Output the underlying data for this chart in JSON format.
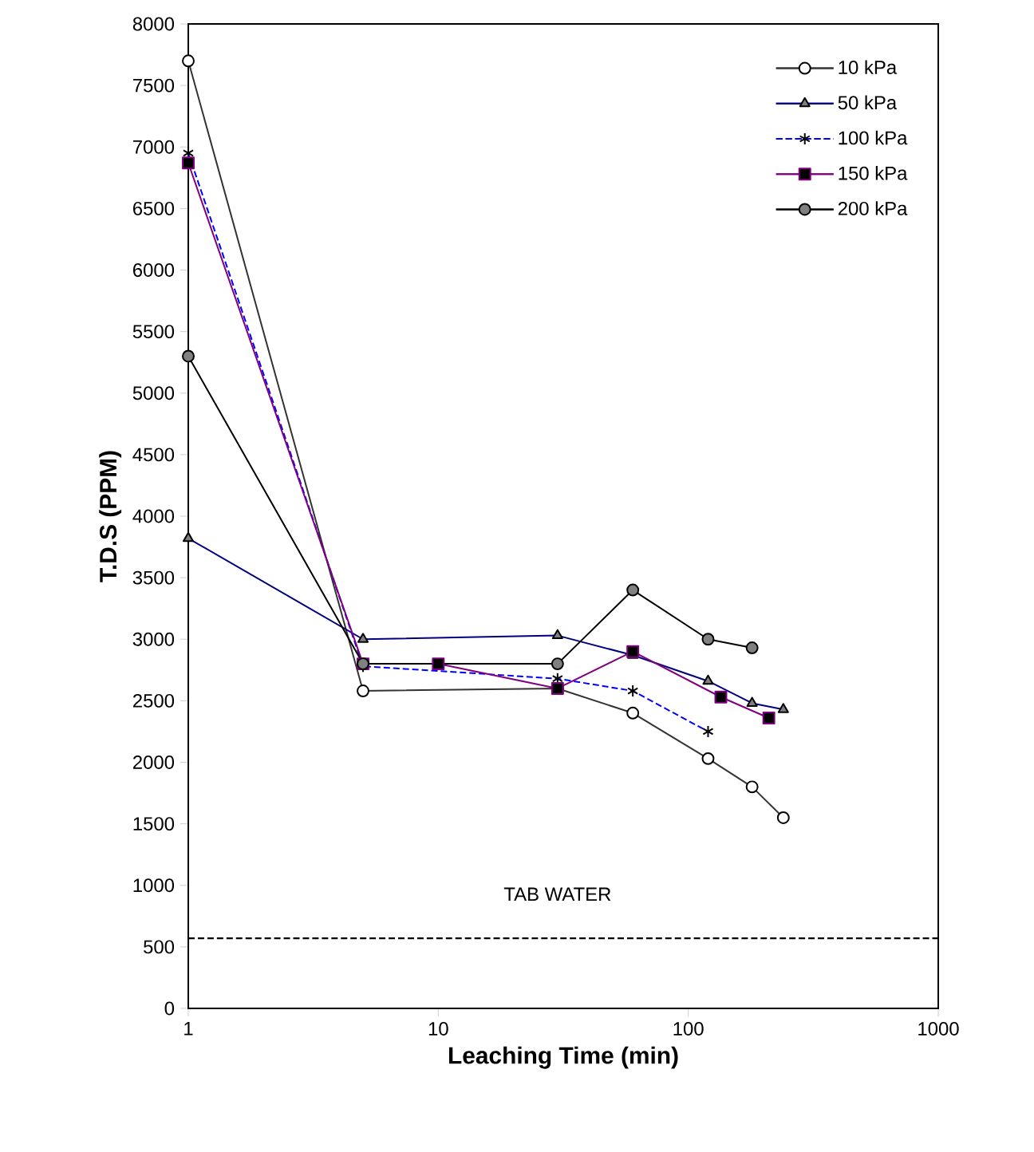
{
  "chart_data": {
    "type": "line",
    "xlabel": "Leaching Time (min)",
    "ylabel": "T.D.S (PPM)",
    "log": "x",
    "xlim": [
      1,
      1000
    ],
    "xticks": [
      1,
      10,
      100,
      1000
    ],
    "ylim": [
      0,
      8000
    ],
    "yticks": [
      0,
      500,
      1000,
      1500,
      2000,
      2500,
      3000,
      3500,
      4000,
      4500,
      5000,
      5500,
      6000,
      6500,
      7000,
      7500,
      8000
    ],
    "grid": false,
    "legend": "top right",
    "series": [
      {
        "name": "10 kPa",
        "color": "#333333",
        "marker": "circle",
        "line_style": "solid",
        "x": [
          1,
          5,
          30,
          60,
          120,
          180,
          240
        ],
        "values": [
          7700,
          2580,
          2600,
          2400,
          2030,
          1800,
          1550
        ]
      },
      {
        "name": "50 kPa",
        "color": "#000080",
        "marker": "triangle",
        "line_style": "solid",
        "x": [
          1,
          5,
          30,
          60,
          120,
          180,
          240
        ],
        "values": [
          3820,
          3000,
          3030,
          2870,
          2660,
          2480,
          2430
        ]
      },
      {
        "name": "100 kPa",
        "color": "#0000ff",
        "marker": "cross",
        "line_style": "dashed",
        "x": [
          1,
          5,
          30,
          60,
          120
        ],
        "values": [
          6950,
          2780,
          2680,
          2580,
          2250
        ]
      },
      {
        "name": "150 kPa",
        "color": "#800080",
        "marker": "square",
        "line_style": "solid",
        "x": [
          1,
          5,
          10,
          30,
          60,
          135,
          210
        ],
        "values": [
          6870,
          2800,
          2800,
          2600,
          2900,
          2530,
          2360
        ]
      },
      {
        "name": "200 kPa",
        "color": "#000000",
        "marker": "circle",
        "line_style": "solid",
        "x": [
          1,
          5,
          30,
          60,
          120,
          180
        ],
        "values": [
          5300,
          2800,
          2800,
          3400,
          3000,
          2930
        ]
      }
    ],
    "ref_lines": [
      {
        "axis": "y",
        "value": 570,
        "label": "TAB WATER",
        "color": "#000000",
        "line_style": "dashed"
      }
    ]
  }
}
